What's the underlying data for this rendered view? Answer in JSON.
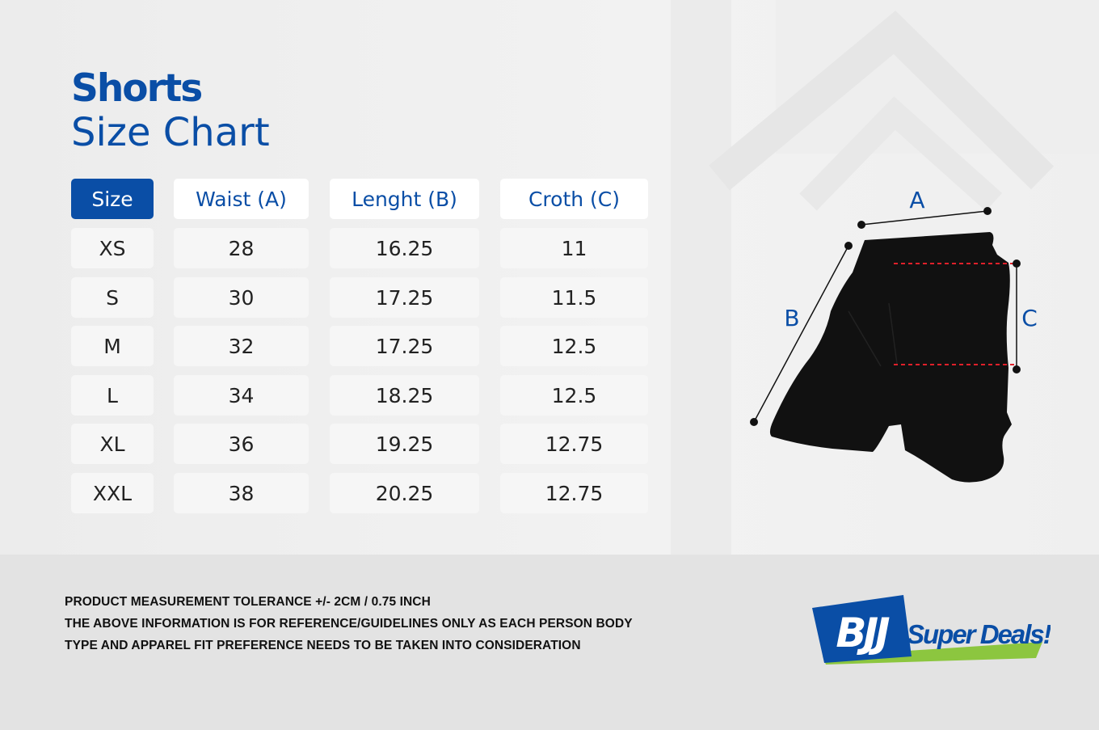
{
  "header": {
    "title": "Shorts",
    "subtitle": "Size Chart"
  },
  "table": {
    "columns": [
      "Size",
      "Waist (A)",
      "Lenght (B)",
      "Croth (C)"
    ],
    "rows": [
      [
        "XS",
        "28",
        "16.25",
        "11"
      ],
      [
        "S",
        "30",
        "17.25",
        "11.5"
      ],
      [
        "M",
        "32",
        "17.25",
        "12.5"
      ],
      [
        "L",
        "34",
        "18.25",
        "12.5"
      ],
      [
        "XL",
        "36",
        "19.25",
        "12.75"
      ],
      [
        "XXL",
        "38",
        "20.25",
        "12.75"
      ]
    ]
  },
  "diagram": {
    "label_a": "A",
    "label_b": "B",
    "label_c": "C"
  },
  "footer": {
    "lines": [
      "PRODUCT MEASUREMENT TOLERANCE +/- 2CM / 0.75 INCH",
      "THE ABOVE INFORMATION IS FOR REFERENCE/GUIDELINES ONLY AS EACH PERSON BODY",
      "TYPE AND APPAREL FIT PREFERENCE NEEDS TO BE TAKEN INTO CONSIDERATION"
    ]
  },
  "logo": {
    "mark": "BJJ",
    "name": "Super Deals!"
  },
  "colors": {
    "brand_blue": "#0a4ea6",
    "logo_green": "#8cc63f",
    "guide_red": "#e0202a"
  }
}
